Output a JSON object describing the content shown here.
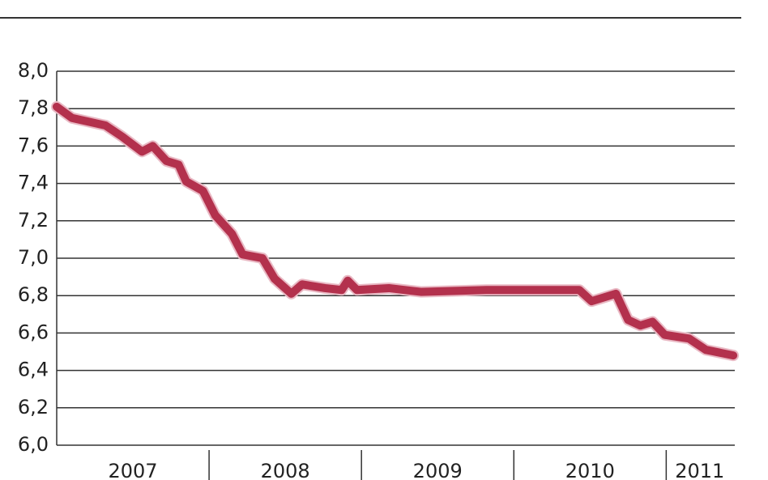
{
  "chart_data": {
    "type": "line",
    "x": [
      2007.0,
      2007.1,
      2007.32,
      2007.43,
      2007.56,
      2007.63,
      2007.72,
      2007.8,
      2007.85,
      2007.96,
      2008.04,
      2008.15,
      2008.22,
      2008.35,
      2008.43,
      2008.54,
      2008.61,
      2008.76,
      2008.87,
      2008.91,
      2008.97,
      2009.18,
      2009.39,
      2009.82,
      2010.43,
      2010.51,
      2010.67,
      2010.75,
      2010.83,
      2010.91,
      2010.99,
      2011.15,
      2011.26,
      2011.44
    ],
    "series": [
      {
        "color": "#b3314d",
        "values": [
          7.81,
          7.75,
          7.71,
          7.65,
          7.57,
          7.6,
          7.52,
          7.5,
          7.41,
          7.36,
          7.23,
          7.13,
          7.02,
          7.0,
          6.89,
          6.81,
          6.86,
          6.84,
          6.83,
          6.88,
          6.83,
          6.84,
          6.82,
          6.83,
          6.83,
          6.77,
          6.81,
          6.67,
          6.64,
          6.66,
          6.59,
          6.57,
          6.51,
          6.48
        ]
      }
    ],
    "xlim": [
      2007,
      2011.45
    ],
    "xticks": [
      {
        "value": 2007.5,
        "label": "2007"
      },
      {
        "value": 2008.5,
        "label": "2008"
      },
      {
        "value": 2009.5,
        "label": "2009"
      },
      {
        "value": 2010.5,
        "label": "2010"
      },
      {
        "value": 2011.22,
        "label": "2011"
      }
    ],
    "ylim": [
      6.0,
      8.0
    ],
    "yticks": [
      {
        "value": 6.0,
        "label": "6,0"
      },
      {
        "value": 6.2,
        "label": "6,2"
      },
      {
        "value": 6.4,
        "label": "6,4"
      },
      {
        "value": 6.6,
        "label": "6,6"
      },
      {
        "value": 6.8,
        "label": "6,8"
      },
      {
        "value": 7.0,
        "label": "7,0"
      },
      {
        "value": 7.2,
        "label": "7,2"
      },
      {
        "value": 7.4,
        "label": "7,4"
      },
      {
        "value": 7.6,
        "label": "7,6"
      },
      {
        "value": 7.8,
        "label": "7,8"
      },
      {
        "value": 8.0,
        "label": "8,0"
      }
    ],
    "grid": true
  }
}
